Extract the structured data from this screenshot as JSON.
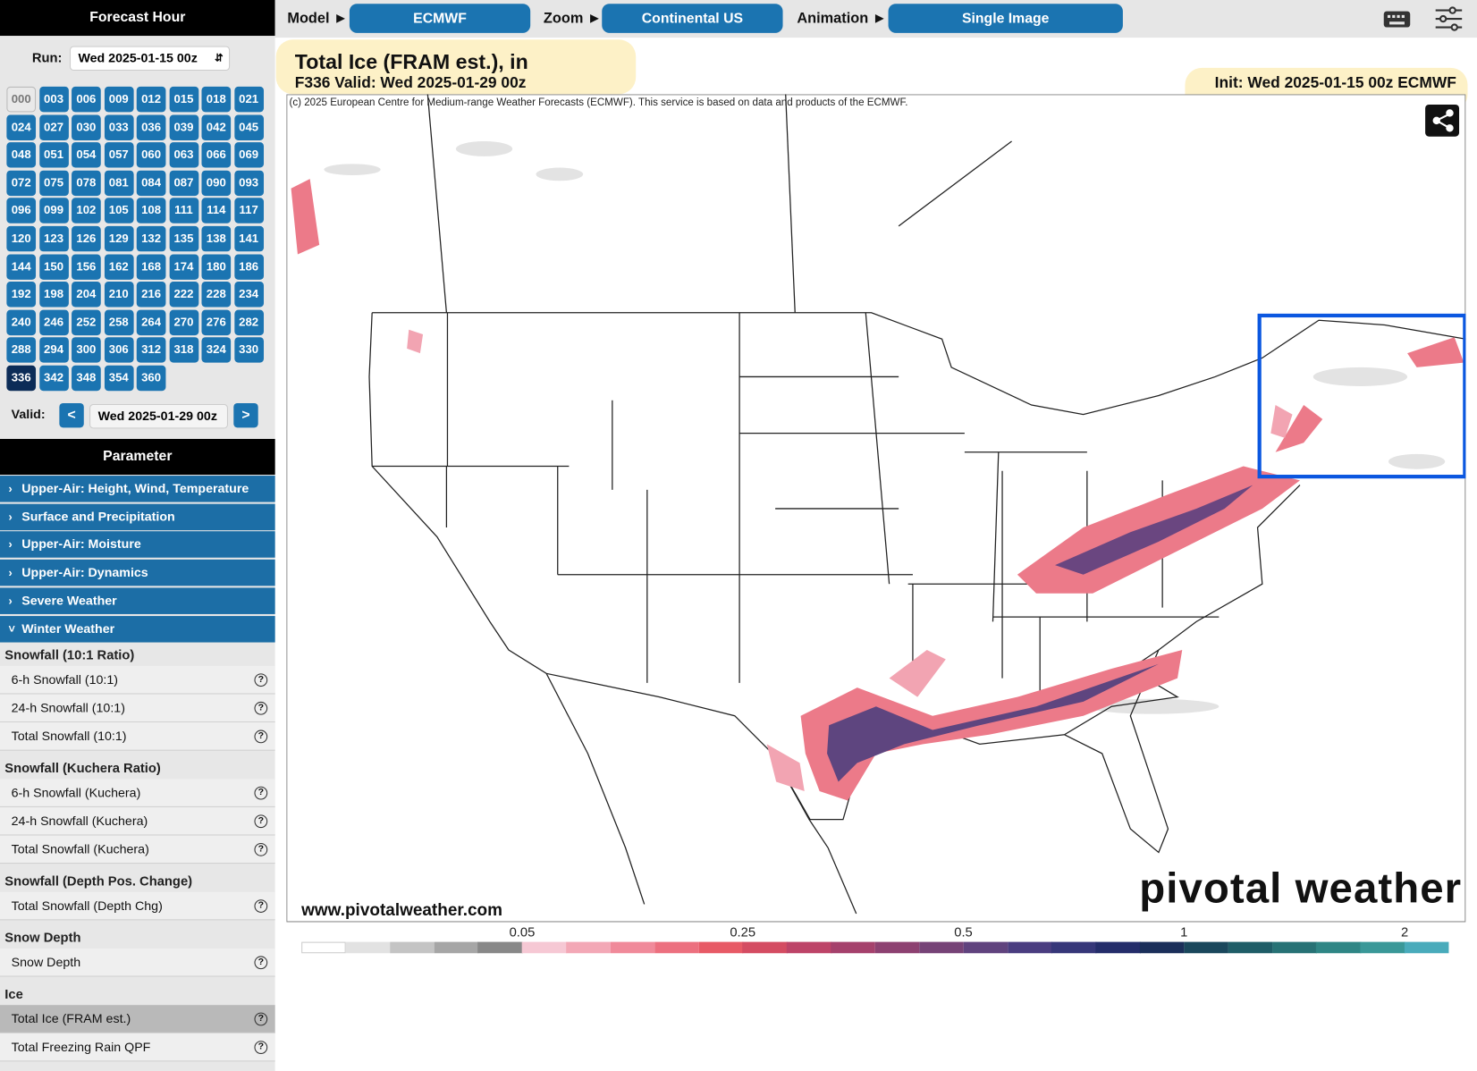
{
  "sidebar": {
    "forecast_hour_title": "Forecast Hour",
    "run_label": "Run:",
    "run_value": "Wed 2025-01-15 00z",
    "hours": [
      "000",
      "003",
      "006",
      "009",
      "012",
      "015",
      "018",
      "021",
      "024",
      "027",
      "030",
      "033",
      "036",
      "039",
      "042",
      "045",
      "048",
      "051",
      "054",
      "057",
      "060",
      "063",
      "066",
      "069",
      "072",
      "075",
      "078",
      "081",
      "084",
      "087",
      "090",
      "093",
      "096",
      "099",
      "102",
      "105",
      "108",
      "111",
      "114",
      "117",
      "120",
      "123",
      "126",
      "129",
      "132",
      "135",
      "138",
      "141",
      "144",
      "150",
      "156",
      "162",
      "168",
      "174",
      "180",
      "186",
      "192",
      "198",
      "204",
      "210",
      "216",
      "222",
      "228",
      "234",
      "240",
      "246",
      "252",
      "258",
      "264",
      "270",
      "276",
      "282",
      "288",
      "294",
      "300",
      "306",
      "312",
      "318",
      "324",
      "330",
      "336",
      "342",
      "348",
      "354",
      "360"
    ],
    "selected_hour": "336",
    "unavailable_hours": [
      "000"
    ],
    "valid_label": "Valid:",
    "prev": "<",
    "next": ">",
    "valid_value": "Wed 2025-01-29 00z",
    "parameter_title": "Parameter",
    "categories": [
      "Upper-Air: Height, Wind, Temperature",
      "Surface and Precipitation",
      "Upper-Air: Moisture",
      "Upper-Air: Dynamics",
      "Severe Weather",
      "Winter Weather"
    ],
    "expanded_category": "Winter Weather",
    "groups": [
      {
        "title": "Snowfall (10:1 Ratio)",
        "items": [
          "6-h Snowfall (10:1)",
          "24-h Snowfall (10:1)",
          "Total Snowfall (10:1)"
        ]
      },
      {
        "title": "Snowfall (Kuchera Ratio)",
        "items": [
          "6-h Snowfall (Kuchera)",
          "24-h Snowfall (Kuchera)",
          "Total Snowfall (Kuchera)"
        ]
      },
      {
        "title": "Snowfall (Depth Pos. Change)",
        "items": [
          "Total Snowfall (Depth Chg)"
        ]
      },
      {
        "title": "Snow Depth",
        "items": [
          "Snow Depth"
        ]
      },
      {
        "title": "Ice",
        "items": [
          "Total Ice (FRAM est.)",
          "Total Freezing Rain QPF"
        ]
      }
    ],
    "selected_item": "Total Ice (FRAM est.)",
    "help": "?"
  },
  "toolbar": {
    "model_label": "Model ►",
    "model": "ECMWF",
    "zoom_label": "Zoom ►",
    "zoom": "Continental US",
    "animation_label": "Animation ►",
    "animation": "Single Image"
  },
  "map": {
    "title": "Total Ice (FRAM est.), in",
    "valid": "F336 Valid: Wed 2025-01-29 00z",
    "init": "Init: Wed 2025-01-15 00z ECMWF",
    "credit": "(c) 2025 European Centre for Medium-range Weather Forecasts (ECMWF). This service is based on data and products of the ECMWF.",
    "website": "www.pivotalweather.com",
    "brand": "pivotal weather"
  },
  "colorbar": {
    "labels": [
      "0.05",
      "0.25",
      "0.5",
      "1",
      "2"
    ],
    "colors": [
      "#ffffff",
      "#e2e2e2",
      "#c4c4c4",
      "#a6a6a6",
      "#888888",
      "#f6c8d4",
      "#f3a8b6",
      "#f08a9a",
      "#ec707f",
      "#e75a66",
      "#d44c62",
      "#bd4468",
      "#a5416c",
      "#8d4171",
      "#764377",
      "#60437e",
      "#4a3d80",
      "#363779",
      "#242d6a",
      "#1b2f5a",
      "#1a475c",
      "#1f5d67",
      "#277275",
      "#2f8685",
      "#3a9898",
      "#49abbb"
    ]
  }
}
